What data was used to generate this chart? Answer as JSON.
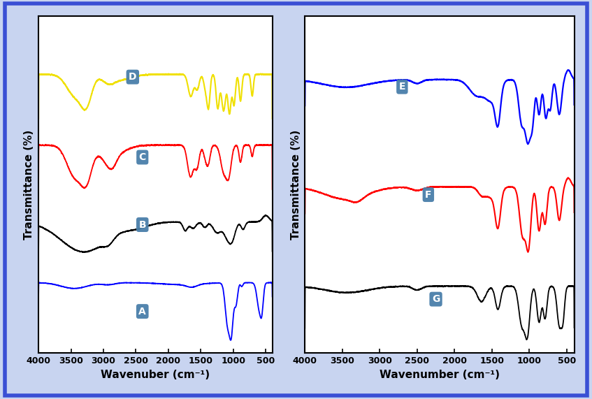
{
  "fig_width": 8.47,
  "fig_height": 5.71,
  "fig_bg_color": "#c8d4f0",
  "border_color": "#3a4fd4",
  "border_lw": 4,
  "subplot_bg": "white",
  "xlabel_left": "Wavenuber (cm⁻¹)",
  "xlabel_right": "Wavenumber (cm⁻¹)",
  "ylabel": "Transmittance (%)",
  "label_bg": "#4a7faa",
  "label_text_color": "white",
  "label_fontsize": 10,
  "axis_label_fontsize": 11,
  "tick_fontsize": 9,
  "line_lw": 1.3
}
